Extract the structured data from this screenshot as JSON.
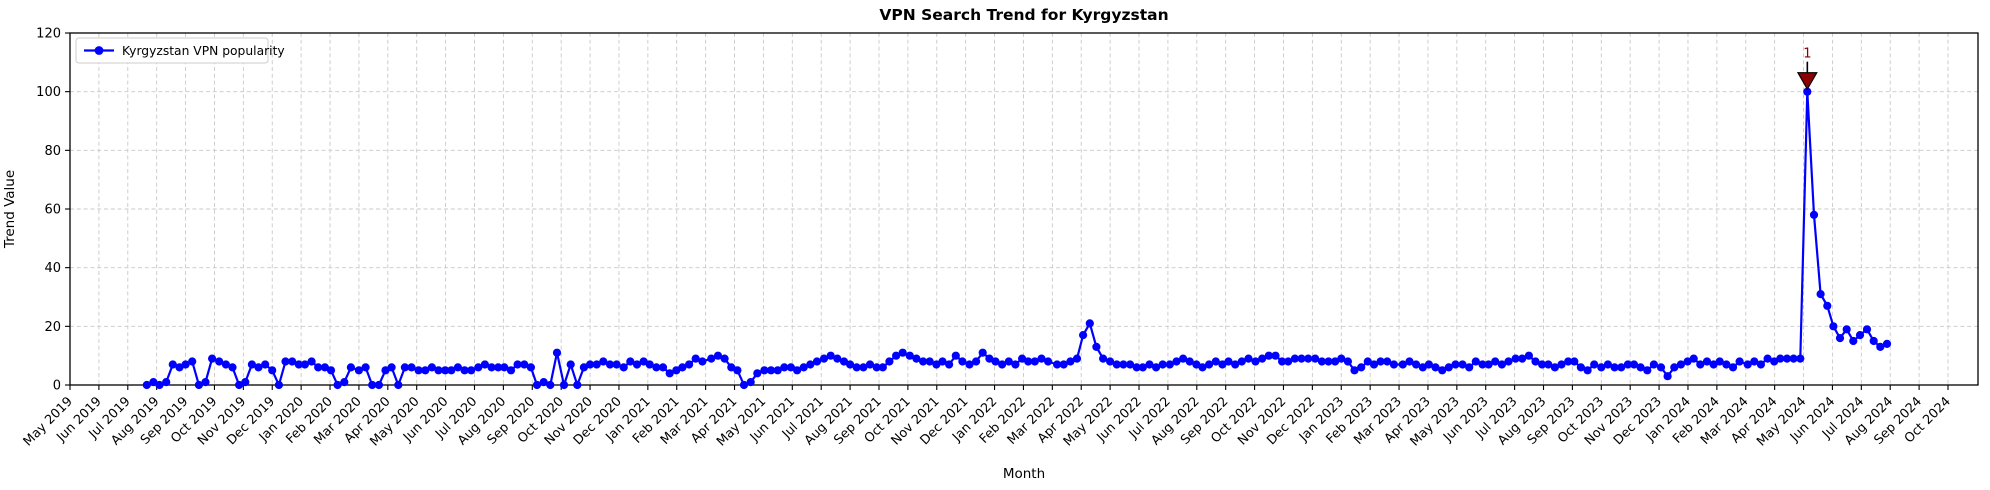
{
  "title": "VPN Search Trend for Kyrgyzstan",
  "xlabel": "Month",
  "ylabel": "Trend Value",
  "legend": {
    "label": "Kyrgyzstan VPN popularity"
  },
  "colors": {
    "line": "#0000FF",
    "marker": "#0000FF",
    "grid": "#c9c9c9",
    "axis": "#000000",
    "annotation": "#8B0000",
    "legend_border": "#cccccc",
    "background": "#ffffff"
  },
  "chart_data": {
    "type": "line",
    "title": "VPN Search Trend for Kyrgyzstan",
    "xlabel": "Month",
    "ylabel": "Trend Value",
    "ylim": [
      0,
      120
    ],
    "yticks": [
      0,
      20,
      40,
      60,
      80,
      100,
      120
    ],
    "grid": true,
    "grid_style": "dashed",
    "legend_position": "upper-left",
    "x_tick_labels": [
      "May 2019",
      "Jun 2019",
      "Jul 2019",
      "Aug 2019",
      "Sep 2019",
      "Oct 2019",
      "Nov 2019",
      "Dec 2019",
      "Jan 2020",
      "Feb 2020",
      "Mar 2020",
      "Apr 2020",
      "May 2020",
      "Jun 2020",
      "Jul 2020",
      "Aug 2020",
      "Sep 2020",
      "Oct 2020",
      "Nov 2020",
      "Dec 2020",
      "Jan 2021",
      "Feb 2021",
      "Mar 2021",
      "Apr 2021",
      "May 2021",
      "Jun 2021",
      "Jul 2021",
      "Aug 2021",
      "Sep 2021",
      "Oct 2021",
      "Nov 2021",
      "Dec 2021",
      "Jan 2022",
      "Feb 2022",
      "Mar 2022",
      "Apr 2022",
      "May 2022",
      "Jun 2022",
      "Jul 2022",
      "Aug 2022",
      "Sep 2022",
      "Oct 2022",
      "Nov 2022",
      "Dec 2022",
      "Jan 2023",
      "Feb 2023",
      "Mar 2023",
      "Apr 2023",
      "May 2023",
      "Jun 2023",
      "Jul 2023",
      "Aug 2023",
      "Sep 2023",
      "Oct 2023",
      "Nov 2023",
      "Dec 2023",
      "Jan 2024",
      "Feb 2024",
      "Mar 2024",
      "Apr 2024",
      "May 2024",
      "Jun 2024",
      "Jul 2024",
      "Aug 2024",
      "Sep 2024",
      "Oct 2024"
    ],
    "series": [
      {
        "name": "Kyrgyzstan VPN popularity",
        "start_week": "2019-07-21",
        "interval_days": 7,
        "values": [
          0,
          1,
          0,
          1,
          7,
          6,
          7,
          8,
          0,
          1,
          9,
          8,
          7,
          6,
          0,
          1,
          7,
          6,
          7,
          5,
          0,
          8,
          8,
          7,
          7,
          8,
          6,
          6,
          5,
          0,
          1,
          6,
          5,
          6,
          0,
          0,
          5,
          6,
          0,
          6,
          6,
          5,
          5,
          6,
          5,
          5,
          5,
          6,
          5,
          5,
          6,
          7,
          6,
          6,
          6,
          5,
          7,
          7,
          6,
          0,
          1,
          0,
          11,
          0,
          7,
          0,
          6,
          7,
          7,
          8,
          7,
          7,
          6,
          8,
          7,
          8,
          7,
          6,
          6,
          4,
          5,
          6,
          7,
          9,
          8,
          9,
          10,
          9,
          6,
          5,
          0,
          1,
          4,
          5,
          5,
          5,
          6,
          6,
          5,
          6,
          7,
          8,
          9,
          10,
          9,
          8,
          7,
          6,
          6,
          7,
          6,
          6,
          8,
          10,
          11,
          10,
          9,
          8,
          8,
          7,
          8,
          7,
          10,
          8,
          7,
          8,
          11,
          9,
          8,
          7,
          8,
          7,
          9,
          8,
          8,
          9,
          8,
          7,
          7,
          8,
          9,
          17,
          21,
          13,
          9,
          8,
          7,
          7,
          7,
          6,
          6,
          7,
          6,
          7,
          7,
          8,
          9,
          8,
          7,
          6,
          7,
          8,
          7,
          8,
          7,
          8,
          9,
          8,
          9,
          10,
          10,
          8,
          8,
          9,
          9,
          9,
          9,
          8,
          8,
          8,
          9,
          8,
          5,
          6,
          8,
          7,
          8,
          8,
          7,
          7,
          8,
          7,
          6,
          7,
          6,
          5,
          6,
          7,
          7,
          6,
          8,
          7,
          7,
          8,
          7,
          8,
          9,
          9,
          10,
          8,
          7,
          7,
          6,
          7,
          8,
          8,
          6,
          5,
          7,
          6,
          7,
          6,
          6,
          7,
          7,
          6,
          5,
          7,
          6,
          3,
          6,
          7,
          8,
          9,
          7,
          8,
          7,
          8,
          7,
          6,
          8,
          7,
          8,
          7,
          9,
          8,
          9,
          9,
          9,
          9,
          100,
          58,
          31,
          27,
          20,
          16,
          19,
          15,
          17,
          19,
          15,
          13,
          14
        ]
      }
    ],
    "annotations": [
      {
        "text": "1",
        "x_week": "2024-05-05",
        "y": 100,
        "marker": "triangle-down",
        "color": "#8B0000"
      }
    ]
  }
}
